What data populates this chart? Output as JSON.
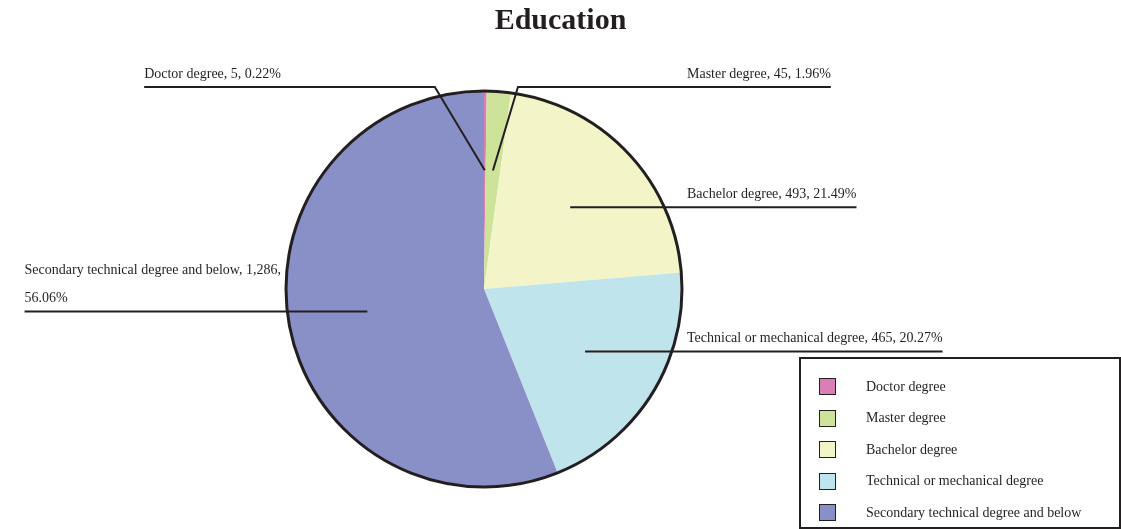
{
  "chart_data": {
    "type": "pie",
    "title": "Education",
    "categories": [
      "Doctor degree",
      "Master degree",
      "Bachelor degree",
      "Technical or mechanical degree",
      "Secondary technical degree and below"
    ],
    "values": [
      5,
      45,
      493,
      465,
      1286
    ],
    "colors": [
      "#d97fb5",
      "#cde39a",
      "#f3f5c8",
      "#c0e4ec",
      "#8990c8"
    ],
    "value_labels": [
      "Doctor degree, 5, 0.22%",
      "Master degree, 45, 1.96%",
      "Bachelor degree, 493, 21.49%",
      "Technical or mechanical degree, 465, 20.27%",
      "Secondary technical degree and below, 1,286, 56.06%"
    ],
    "legend": "bottom right"
  }
}
